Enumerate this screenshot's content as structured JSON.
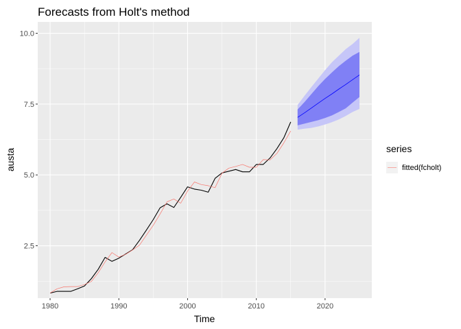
{
  "chart_data": {
    "type": "line",
    "title": "Forecasts from Holt's method",
    "xlabel": "Time",
    "ylabel": "austa",
    "xlim": [
      1978.2,
      2026.8
    ],
    "ylim": [
      0.65,
      10.4
    ],
    "xticks": [
      1980,
      1990,
      2000,
      2010,
      2020
    ],
    "xtick_labels": [
      "1980",
      "1990",
      "2000",
      "2010",
      "2020"
    ],
    "yticks": [
      2.5,
      5.0,
      7.5,
      10.0
    ],
    "ytick_labels": [
      "2.5",
      "5.0",
      "7.5",
      "10.0"
    ],
    "grid": true,
    "legend": {
      "position": "right",
      "title": "series",
      "entries": [
        {
          "label": "fitted(fcholt)",
          "color": "#f8766d"
        }
      ]
    },
    "colors": {
      "panel": "#ebebeb",
      "grid": "#ffffff",
      "actual": "#000000",
      "fitted": "#f8766d",
      "forecast": "#0000ff",
      "band80": "#8080f5",
      "band95": "#c6c6f8"
    },
    "series": [
      {
        "role": "actual",
        "x": [
          1980,
          1981,
          1982,
          1983,
          1984,
          1985,
          1986,
          1987,
          1988,
          1989,
          1990,
          1991,
          1992,
          1993,
          1994,
          1995,
          1996,
          1997,
          1998,
          1999,
          2000,
          2001,
          2002,
          2003,
          2004,
          2005,
          2006,
          2007,
          2008,
          2009,
          2010,
          2011,
          2012,
          2013,
          2014,
          2015
        ],
        "values": [
          0.83,
          0.89,
          0.89,
          0.89,
          0.98,
          1.08,
          1.34,
          1.67,
          2.09,
          1.95,
          2.06,
          2.21,
          2.36,
          2.69,
          3.05,
          3.42,
          3.84,
          3.98,
          3.85,
          4.21,
          4.58,
          4.5,
          4.46,
          4.39,
          4.88,
          5.07,
          5.13,
          5.19,
          5.11,
          5.11,
          5.37,
          5.37,
          5.6,
          5.93,
          6.31,
          6.87
        ]
      },
      {
        "name": "fitted(fcholt)",
        "role": "fitted",
        "x": [
          1980,
          1981,
          1982,
          1983,
          1984,
          1985,
          1986,
          1987,
          1988,
          1989,
          1990,
          1991,
          1992,
          1993,
          1994,
          1995,
          1996,
          1997,
          1998,
          1999,
          2000,
          2001,
          2002,
          2003,
          2004,
          2005,
          2006,
          2007,
          2008,
          2009,
          2010,
          2011,
          2012,
          2013,
          2014,
          2015
        ],
        "values": [
          0.83,
          0.98,
          1.05,
          1.06,
          1.06,
          1.13,
          1.24,
          1.55,
          1.93,
          2.26,
          2.1,
          2.2,
          2.35,
          2.52,
          2.87,
          3.22,
          3.62,
          4.05,
          4.15,
          4.0,
          4.43,
          4.75,
          4.66,
          4.62,
          4.55,
          5.06,
          5.24,
          5.3,
          5.37,
          5.27,
          5.27,
          5.54,
          5.53,
          5.76,
          6.13,
          6.55
        ]
      },
      {
        "role": "forecast",
        "x": [
          2016,
          2017,
          2018,
          2019,
          2020,
          2021,
          2022,
          2023,
          2024,
          2025
        ],
        "values": [
          7.03,
          7.19,
          7.36,
          7.53,
          7.7,
          7.86,
          8.03,
          8.19,
          8.36,
          8.53
        ],
        "lo80": [
          6.75,
          6.81,
          6.87,
          6.93,
          7.01,
          7.1,
          7.22,
          7.35,
          7.55,
          7.75
        ],
        "hi80": [
          7.31,
          7.57,
          7.85,
          8.13,
          8.39,
          8.62,
          8.84,
          9.03,
          9.21,
          9.34
        ],
        "lo95": [
          6.6,
          6.63,
          6.66,
          6.71,
          6.78,
          6.86,
          6.96,
          7.08,
          7.22,
          7.33
        ],
        "hi95": [
          7.47,
          7.79,
          8.1,
          8.4,
          8.7,
          8.98,
          9.21,
          9.44,
          9.62,
          9.84
        ]
      }
    ]
  }
}
